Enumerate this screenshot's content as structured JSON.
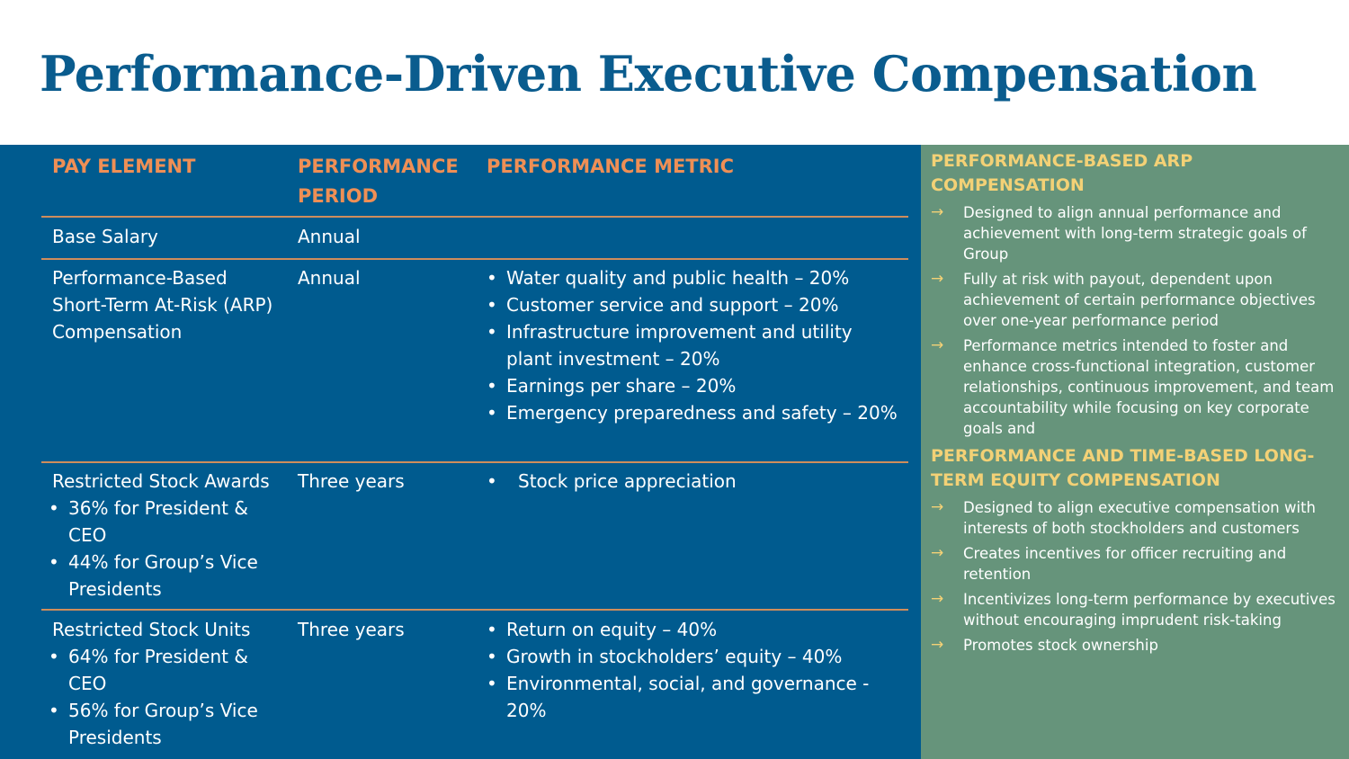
{
  "title": "Performance-Driven Executive Compensation",
  "table": {
    "headers": [
      "PAY ELEMENT",
      "PERFORMANCE PERIOD",
      "PERFORMANCE METRIC"
    ],
    "rows": [
      {
        "element": "Base Salary",
        "element_bullets": [],
        "period": "Annual",
        "metrics": []
      },
      {
        "element": "Performance-Based Short-Term At-Risk (ARP) Compensation",
        "element_bullets": [],
        "period": "Annual",
        "metrics": [
          "Water quality and public health – 20%",
          "Customer service and support – 20%",
          "Infrastructure improvement and utility plant investment – 20%",
          "Earnings per share – 20%",
          "Emergency preparedness and safety – 20%"
        ]
      },
      {
        "element": "Restricted Stock Awards",
        "element_bullets": [
          "36% for President & CEO",
          "44% for Group’s Vice Presidents"
        ],
        "period": "Three years",
        "metrics": [
          "Stock price appreciation"
        ]
      },
      {
        "element": "Restricted Stock Units",
        "element_bullets": [
          "64% for President & CEO",
          "56% for Group’s Vice Presidents"
        ],
        "period": "Three years",
        "metrics": [
          "Return on equity – 40%",
          "Growth in stockholders’ equity – 40%",
          "Environmental, social, and governance - 20%"
        ]
      }
    ]
  },
  "sidebar": {
    "sections": [
      {
        "title": "PERFORMANCE-BASED ARP COMPENSATION",
        "items": [
          "Designed to align annual performance and achievement with long-term strategic goals of Group",
          "Fully at risk with payout, dependent upon achievement of certain performance objectives over one-year performance period",
          "Performance metrics intended to foster and enhance cross-functional integration, customer relationships, continuous improvement, and team accountability while focusing on key corporate goals and"
        ]
      },
      {
        "title": "PERFORMANCE AND TIME-BASED LONG-TERM EQUITY COMPENSATION",
        "items": [
          "Designed to align executive compensation with interests of both stockholders and customers",
          "Creates incentives for officer recruiting and retention",
          "Incentivizes long-term performance by executives without encouraging imprudent risk-taking",
          "Promotes stock ownership"
        ]
      }
    ],
    "arrow_glyph": "→"
  },
  "colors": {
    "title": "#0a5c8e",
    "table_bg": "#005b8f",
    "header_text": "#ef8f55",
    "sidebar_bg": "#66947b",
    "sidebar_title": "#f3d176"
  }
}
